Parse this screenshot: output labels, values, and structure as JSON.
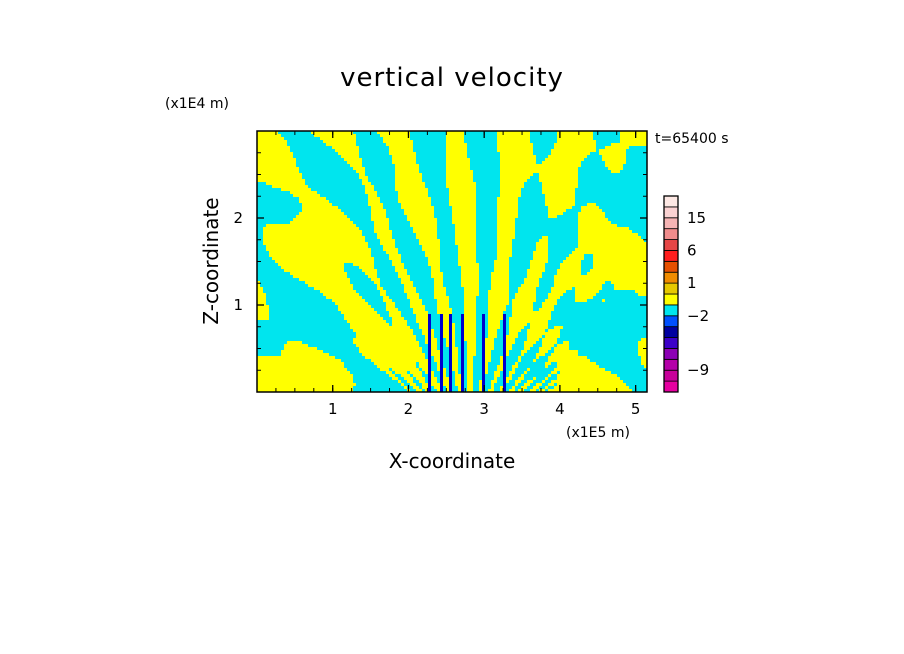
{
  "chart_data": {
    "type": "heatmap",
    "title": "vertical velocity",
    "xlabel": "X-coordinate",
    "ylabel": "Z-coordinate",
    "x_scale_label": "(x1E5 m)",
    "y_scale_label": "(x1E4 m)",
    "time_label": "t=65400 s",
    "xlim": [
      0,
      5.15
    ],
    "ylim": [
      0,
      3.0
    ],
    "x_ticks": [
      1,
      2,
      3,
      4,
      5
    ],
    "y_ticks": [
      1,
      2
    ],
    "x_tick_labels": [
      "1",
      "2",
      "3",
      "4",
      "5"
    ],
    "y_tick_labels": [
      "1",
      "2"
    ],
    "field_colors": {
      "positive": "#ffff00",
      "negative": "#00e5ee",
      "strong_negative": "#0000cc"
    },
    "colorbar": {
      "levels": [
        -12,
        -10.5,
        -9,
        -7.5,
        -6,
        -4.5,
        -3,
        -2,
        -1,
        0,
        1,
        2,
        3,
        6,
        9,
        12,
        15,
        18,
        22
      ],
      "colors": [
        "#e600a0",
        "#c8009a",
        "#b400a8",
        "#8c00b4",
        "#3c00c8",
        "#0000a0",
        "#0050ff",
        "#00e5ee",
        "#ffff00",
        "#e6c800",
        "#f08c00",
        "#e65000",
        "#ff1e1e",
        "#e64646",
        "#f08c8c",
        "#f5b4b4",
        "#fad2d2",
        "#fde8e4"
      ],
      "tick_values": [
        -9,
        -2,
        1,
        6,
        15
      ],
      "tick_labels": [
        "−9",
        "−2",
        "1",
        "6",
        "15"
      ]
    }
  }
}
